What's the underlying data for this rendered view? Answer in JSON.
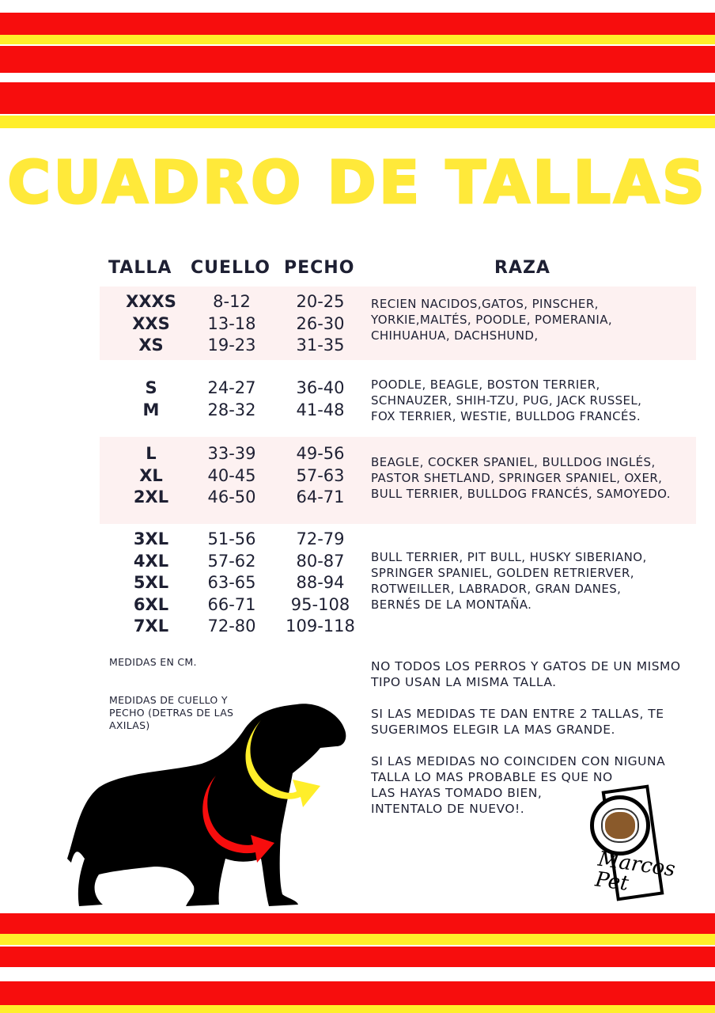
{
  "title": "CUADRO DE TALLAS",
  "headers": {
    "talla": "TALLA",
    "cuello": "CUELLO",
    "pecho": "PECHO",
    "raza": "RAZA"
  },
  "groups": [
    {
      "tallas": [
        "XXXS",
        "XXS",
        "XS"
      ],
      "cuello": [
        "8-12",
        "13-18",
        "19-23"
      ],
      "pecho": [
        "20-25",
        "26-30",
        "31-35"
      ],
      "raza": [
        "RECIEN NACIDOS,GATOS, PINSCHER,",
        "YORKIE,MALTÉS, POODLE, POMERANIA,",
        "CHIHUAHUA, DACHSHUND,"
      ]
    },
    {
      "tallas": [
        "S",
        "M"
      ],
      "cuello": [
        "24-27",
        "28-32"
      ],
      "pecho": [
        "36-40",
        "41-48"
      ],
      "raza": [
        "POODLE, BEAGLE, BOSTON TERRIER,",
        "SCHNAUZER, SHIH-TZU, PUG, JACK RUSSEL,",
        "FOX TERRIER, WESTIE, BULLDOG FRANCÉS."
      ]
    },
    {
      "tallas": [
        "L",
        "XL",
        "2XL"
      ],
      "cuello": [
        "33-39",
        "40-45",
        "46-50"
      ],
      "pecho": [
        "49-56",
        "57-63",
        "64-71"
      ],
      "raza": [
        "BEAGLE, COCKER SPANIEL, BULLDOG INGLÉS,",
        "PASTOR SHETLAND, SPRINGER SPANIEL, OXER,",
        "BULL TERRIER, BULLDOG FRANCÉS, SAMOYEDO."
      ]
    },
    {
      "tallas": [
        "3XL",
        "4XL",
        "5XL",
        "6XL",
        "7XL"
      ],
      "cuello": [
        "51-56",
        "57-62",
        "63-65",
        "66-71",
        "72-80"
      ],
      "pecho": [
        "72-79",
        "80-87",
        "88-94",
        "95-108",
        "109-118"
      ],
      "raza": [
        "BULL TERRIER, PIT BULL, HUSKY SIBERIANO,",
        "SPRINGER SPANIEL, GOLDEN RETRIERVER,",
        "ROTWEILLER, LABRADOR, GRAN DANES,",
        "BERNÉS DE LA MONTAÑA."
      ]
    }
  ],
  "notes": {
    "units": "MEDIDAS EN CM.",
    "measure": [
      "MEDIDAS DE CUELLO Y",
      "PECHO (DETRAS DE LAS",
      "AXILAS)"
    ]
  },
  "tips": [
    [
      "NO TODOS LOS PERROS Y GATOS DE UN MISMO",
      "TIPO USAN LA MISMA TALLA."
    ],
    [
      "SI LAS MEDIDAS TE DAN ENTRE 2 TALLAS, TE",
      "SUGERIMOS ELEGIR LA MAS GRANDE."
    ],
    [
      "SI LAS MEDIDAS NO COINCIDEN CON NIGUNA",
      "TALLA LO MAS PROBABLE ES QUE NO",
      "LAS HAYAS TOMADO BIEN,",
      "INTENTALO DE NUEVO!."
    ]
  ],
  "logo": "Marcos Pet",
  "colors": {
    "red": "#f70d0d",
    "yellow": "#ffee2a",
    "band": "#fdf1f1",
    "text": "#1e2033"
  }
}
